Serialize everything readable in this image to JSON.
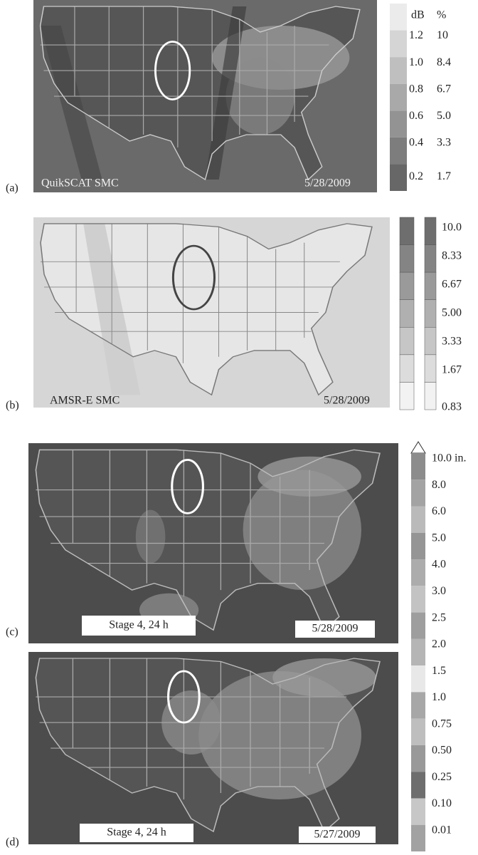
{
  "panels": [
    {
      "label": "(a)",
      "caption": "QuikSCAT SMC",
      "date": "5/28/2009",
      "legend": {
        "headers": [
          "dB",
          "%"
        ],
        "rows": [
          [
            "1.2",
            "10"
          ],
          [
            "1.0",
            "8.4"
          ],
          [
            "0.8",
            "6.7"
          ],
          [
            "0.6",
            "5.0"
          ],
          [
            "0.4",
            "3.3"
          ],
          [
            "0.2",
            "1.7"
          ]
        ]
      }
    },
    {
      "label": "(b)",
      "caption": "AMSR-E SMC",
      "date": "5/28/2009",
      "legend": {
        "labels": [
          "10.0",
          "8.33",
          "6.67",
          "5.00",
          "3.33",
          "1.67",
          "0.83"
        ]
      }
    },
    {
      "label": "(c)",
      "caption": "Stage 4, 24 h",
      "date": "5/28/2009"
    },
    {
      "label": "(d)",
      "caption": "Stage 4, 24 h",
      "date": "5/27/2009"
    }
  ],
  "precip_legend": {
    "labels": [
      "10.0 in.",
      "8.0",
      "6.0",
      "5.0",
      "4.0",
      "3.0",
      "2.5",
      "2.0",
      "1.5",
      "1.0",
      "0.75",
      "0.50",
      "0.25",
      "0.10",
      "0.01"
    ]
  }
}
